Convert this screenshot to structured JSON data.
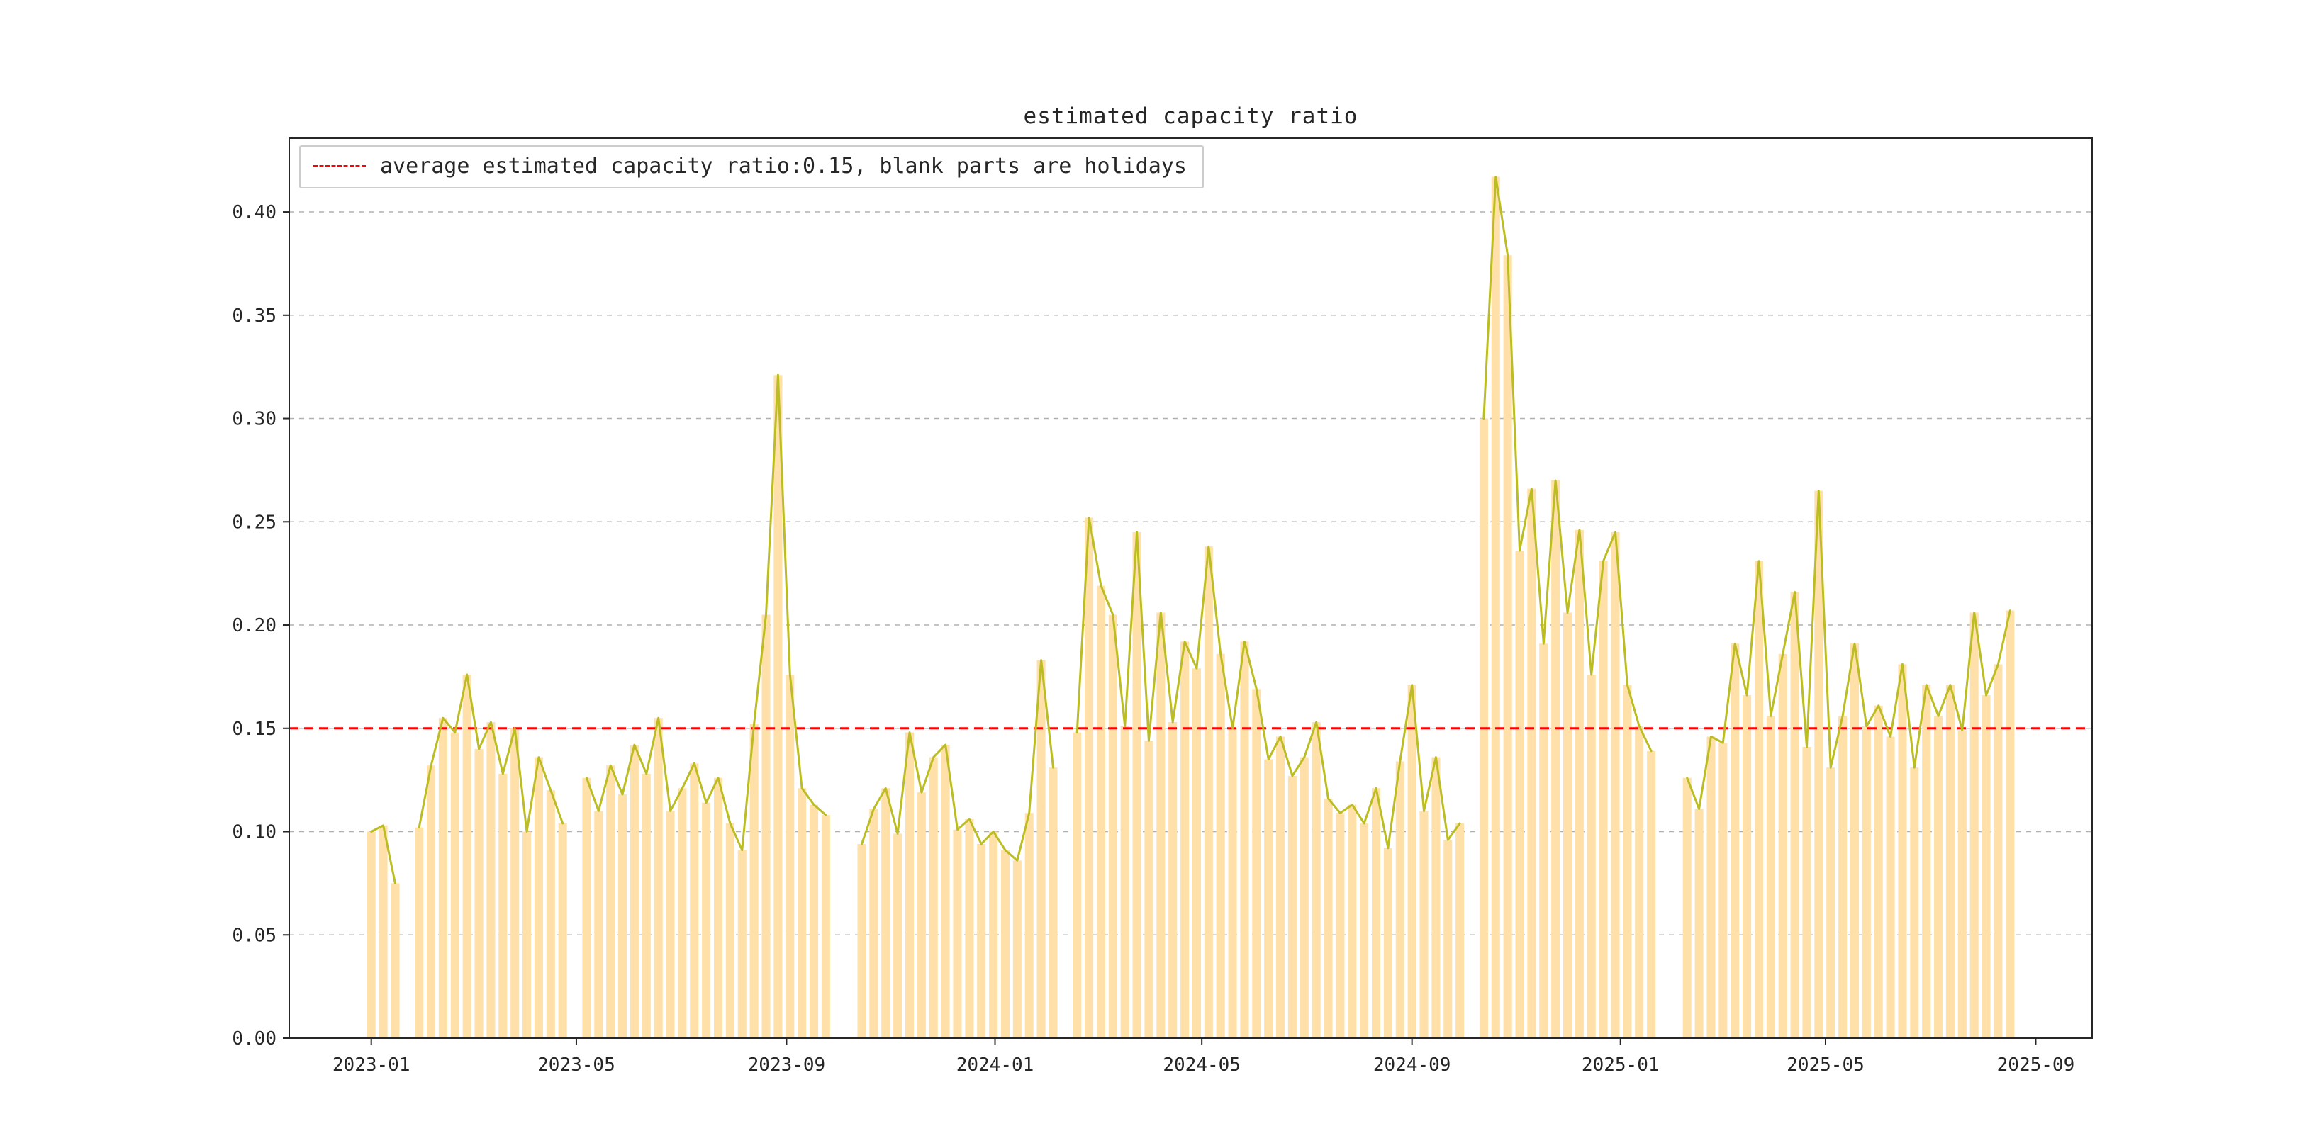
{
  "chart_data": {
    "type": "bar",
    "subtype": "bar-with-line-overlay",
    "title": "estimated capacity ratio",
    "xlabel": "",
    "ylabel": "",
    "legend": {
      "label": "average estimated capacity ratio:0.15, blank parts are holidays",
      "position": "upper-left"
    },
    "average_line": {
      "value": 0.15,
      "color": "#ff0000",
      "style": "dashed"
    },
    "colors": {
      "bar": "#ffe0a8",
      "line": "#bcbd22",
      "grid": "#b0b0b0",
      "axis": "#262626",
      "background": "#ffffff"
    },
    "grid": "horizontal-dashed",
    "ylim": [
      0,
      0.4357
    ],
    "xlim": [
      "2022-11-14",
      "2025-10-04"
    ],
    "bar_width_days": 5,
    "gap_break_days": 10,
    "y_ticks": [
      {
        "label": "0.00",
        "value": 0.0
      },
      {
        "label": "0.05",
        "value": 0.05
      },
      {
        "label": "0.10",
        "value": 0.1
      },
      {
        "label": "0.15",
        "value": 0.15
      },
      {
        "label": "0.20",
        "value": 0.2
      },
      {
        "label": "0.25",
        "value": 0.25
      },
      {
        "label": "0.30",
        "value": 0.3
      },
      {
        "label": "0.35",
        "value": 0.35
      },
      {
        "label": "0.40",
        "value": 0.4
      }
    ],
    "x_ticks": [
      {
        "label": "2023-01",
        "date": "2023-01-01"
      },
      {
        "label": "2023-05",
        "date": "2023-05-01"
      },
      {
        "label": "2023-09",
        "date": "2023-09-01"
      },
      {
        "label": "2024-01",
        "date": "2024-01-01"
      },
      {
        "label": "2024-05",
        "date": "2024-05-01"
      },
      {
        "label": "2024-09",
        "date": "2024-09-01"
      },
      {
        "label": "2025-01",
        "date": "2025-01-01"
      },
      {
        "label": "2025-05",
        "date": "2025-05-01"
      },
      {
        "label": "2025-09",
        "date": "2025-09-01"
      }
    ],
    "series_name": "estimated capacity ratio",
    "points": [
      [
        "2023-01-01",
        0.1
      ],
      [
        "2023-01-08",
        0.103
      ],
      [
        "2023-01-15",
        0.075
      ],
      [
        "2023-01-29",
        0.102
      ],
      [
        "2023-02-05",
        0.132
      ],
      [
        "2023-02-12",
        0.155
      ],
      [
        "2023-02-19",
        0.148
      ],
      [
        "2023-02-26",
        0.176
      ],
      [
        "2023-03-05",
        0.14
      ],
      [
        "2023-03-12",
        0.153
      ],
      [
        "2023-03-19",
        0.128
      ],
      [
        "2023-03-26",
        0.15
      ],
      [
        "2023-04-02",
        0.1
      ],
      [
        "2023-04-09",
        0.136
      ],
      [
        "2023-04-16",
        0.12
      ],
      [
        "2023-04-23",
        0.104
      ],
      [
        "2023-05-07",
        0.126
      ],
      [
        "2023-05-14",
        0.11
      ],
      [
        "2023-05-21",
        0.132
      ],
      [
        "2023-05-28",
        0.118
      ],
      [
        "2023-06-04",
        0.142
      ],
      [
        "2023-06-11",
        0.128
      ],
      [
        "2023-06-18",
        0.155
      ],
      [
        "2023-06-25",
        0.11
      ],
      [
        "2023-07-02",
        0.121
      ],
      [
        "2023-07-09",
        0.133
      ],
      [
        "2023-07-16",
        0.114
      ],
      [
        "2023-07-23",
        0.126
      ],
      [
        "2023-07-30",
        0.104
      ],
      [
        "2023-08-06",
        0.091
      ],
      [
        "2023-08-13",
        0.152
      ],
      [
        "2023-08-20",
        0.205
      ],
      [
        "2023-08-27",
        0.321
      ],
      [
        "2023-09-03",
        0.176
      ],
      [
        "2023-09-10",
        0.121
      ],
      [
        "2023-09-17",
        0.113
      ],
      [
        "2023-09-24",
        0.108
      ],
      [
        "2023-10-15",
        0.094
      ],
      [
        "2023-10-22",
        0.111
      ],
      [
        "2023-10-29",
        0.121
      ],
      [
        "2023-11-05",
        0.099
      ],
      [
        "2023-11-12",
        0.148
      ],
      [
        "2023-11-19",
        0.119
      ],
      [
        "2023-11-26",
        0.136
      ],
      [
        "2023-12-03",
        0.142
      ],
      [
        "2023-12-10",
        0.101
      ],
      [
        "2023-12-17",
        0.106
      ],
      [
        "2023-12-24",
        0.094
      ],
      [
        "2023-12-31",
        0.1
      ],
      [
        "2024-01-07",
        0.091
      ],
      [
        "2024-01-14",
        0.086
      ],
      [
        "2024-01-21",
        0.109
      ],
      [
        "2024-01-28",
        0.183
      ],
      [
        "2024-02-04",
        0.131
      ],
      [
        "2024-02-18",
        0.148
      ],
      [
        "2024-02-25",
        0.252
      ],
      [
        "2024-03-03",
        0.219
      ],
      [
        "2024-03-10",
        0.205
      ],
      [
        "2024-03-17",
        0.151
      ],
      [
        "2024-03-24",
        0.245
      ],
      [
        "2024-03-31",
        0.144
      ],
      [
        "2024-04-07",
        0.206
      ],
      [
        "2024-04-14",
        0.153
      ],
      [
        "2024-04-21",
        0.192
      ],
      [
        "2024-04-28",
        0.179
      ],
      [
        "2024-05-05",
        0.238
      ],
      [
        "2024-05-12",
        0.186
      ],
      [
        "2024-05-19",
        0.15
      ],
      [
        "2024-05-26",
        0.192
      ],
      [
        "2024-06-02",
        0.169
      ],
      [
        "2024-06-09",
        0.135
      ],
      [
        "2024-06-16",
        0.146
      ],
      [
        "2024-06-23",
        0.127
      ],
      [
        "2024-06-30",
        0.136
      ],
      [
        "2024-07-07",
        0.153
      ],
      [
        "2024-07-14",
        0.116
      ],
      [
        "2024-07-21",
        0.109
      ],
      [
        "2024-07-28",
        0.113
      ],
      [
        "2024-08-04",
        0.104
      ],
      [
        "2024-08-11",
        0.121
      ],
      [
        "2024-08-18",
        0.092
      ],
      [
        "2024-08-25",
        0.134
      ],
      [
        "2024-09-01",
        0.171
      ],
      [
        "2024-09-08",
        0.11
      ],
      [
        "2024-09-15",
        0.136
      ],
      [
        "2024-09-22",
        0.096
      ],
      [
        "2024-09-29",
        0.104
      ],
      [
        "2024-10-13",
        0.3
      ],
      [
        "2024-10-20",
        0.417
      ],
      [
        "2024-10-27",
        0.379
      ],
      [
        "2024-11-03",
        0.236
      ],
      [
        "2024-11-10",
        0.266
      ],
      [
        "2024-11-17",
        0.191
      ],
      [
        "2024-11-24",
        0.27
      ],
      [
        "2024-12-01",
        0.206
      ],
      [
        "2024-12-08",
        0.246
      ],
      [
        "2024-12-15",
        0.176
      ],
      [
        "2024-12-22",
        0.231
      ],
      [
        "2024-12-29",
        0.245
      ],
      [
        "2025-01-05",
        0.171
      ],
      [
        "2025-01-12",
        0.151
      ],
      [
        "2025-01-19",
        0.139
      ],
      [
        "2025-02-09",
        0.126
      ],
      [
        "2025-02-16",
        0.111
      ],
      [
        "2025-02-23",
        0.146
      ],
      [
        "2025-03-02",
        0.143
      ],
      [
        "2025-03-09",
        0.191
      ],
      [
        "2025-03-16",
        0.166
      ],
      [
        "2025-03-23",
        0.231
      ],
      [
        "2025-03-30",
        0.156
      ],
      [
        "2025-04-06",
        0.186
      ],
      [
        "2025-04-13",
        0.216
      ],
      [
        "2025-04-20",
        0.141
      ],
      [
        "2025-04-27",
        0.265
      ],
      [
        "2025-05-04",
        0.131
      ],
      [
        "2025-05-11",
        0.156
      ],
      [
        "2025-05-18",
        0.191
      ],
      [
        "2025-05-25",
        0.151
      ],
      [
        "2025-06-01",
        0.161
      ],
      [
        "2025-06-08",
        0.146
      ],
      [
        "2025-06-15",
        0.181
      ],
      [
        "2025-06-22",
        0.131
      ],
      [
        "2025-06-29",
        0.171
      ],
      [
        "2025-07-06",
        0.156
      ],
      [
        "2025-07-13",
        0.171
      ],
      [
        "2025-07-20",
        0.149
      ],
      [
        "2025-07-27",
        0.206
      ],
      [
        "2025-08-03",
        0.166
      ],
      [
        "2025-08-10",
        0.181
      ],
      [
        "2025-08-17",
        0.207
      ]
    ]
  }
}
